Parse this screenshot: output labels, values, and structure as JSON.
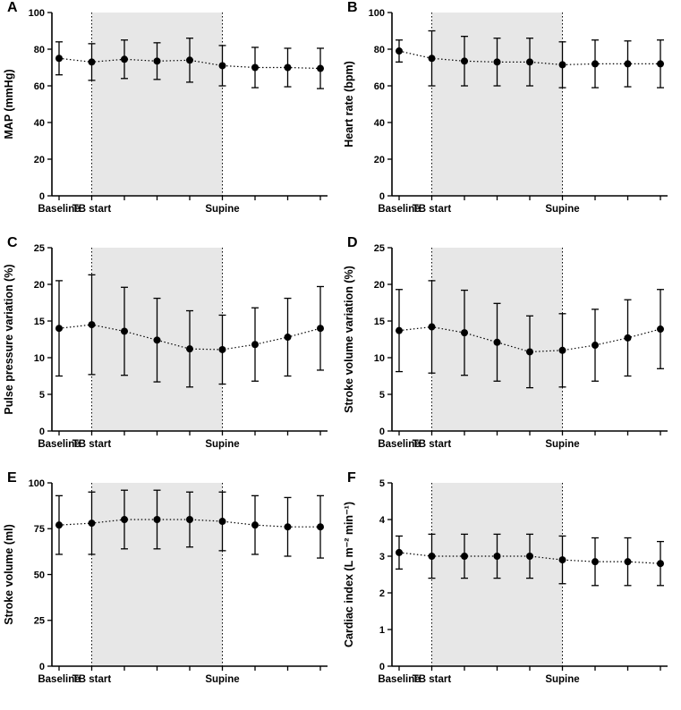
{
  "figure": {
    "background": "#ffffff",
    "axis_color": "#000000",
    "point_color": "#000000",
    "shade_color": "#e7e7e7"
  },
  "chart_data": [
    {
      "type": "line",
      "panel": "A",
      "ylabel": "MAP (mmHg)",
      "ylim": [
        0,
        100
      ],
      "yticks": [
        0,
        20,
        40,
        60,
        80,
        100
      ],
      "n_points": 9,
      "x_labels": [
        {
          "index": 0,
          "label": "Baseline"
        },
        {
          "index": 1,
          "label": "TB start"
        },
        {
          "index": 5,
          "label": "Supine"
        }
      ],
      "shaded_span": [
        1,
        5
      ],
      "means": [
        75,
        73,
        74.5,
        73.5,
        74,
        71,
        70,
        70,
        69.5
      ],
      "errors": [
        9,
        10,
        10.5,
        10,
        12,
        11,
        11,
        10.5,
        11
      ],
      "grid": false,
      "legend": "none"
    },
    {
      "type": "line",
      "panel": "B",
      "ylabel": "Heart rate (bpm)",
      "ylim": [
        0,
        100
      ],
      "yticks": [
        0,
        20,
        40,
        60,
        80,
        100
      ],
      "n_points": 9,
      "x_labels": [
        {
          "index": 0,
          "label": "Baseline"
        },
        {
          "index": 1,
          "label": "TB start"
        },
        {
          "index": 5,
          "label": "Supine"
        }
      ],
      "shaded_span": [
        1,
        5
      ],
      "means": [
        79,
        75,
        73.5,
        73,
        73,
        71.5,
        72,
        72,
        72
      ],
      "errors": [
        6,
        15,
        13.5,
        13,
        13,
        12.5,
        13,
        12.5,
        13
      ],
      "grid": false,
      "legend": "none"
    },
    {
      "type": "line",
      "panel": "C",
      "ylabel": "Pulse pressure variation (%)",
      "ylim": [
        0,
        25
      ],
      "yticks": [
        0,
        5,
        10,
        15,
        20,
        25
      ],
      "n_points": 9,
      "x_labels": [
        {
          "index": 0,
          "label": "Baseline"
        },
        {
          "index": 1,
          "label": "TB start"
        },
        {
          "index": 5,
          "label": "Supine"
        }
      ],
      "shaded_span": [
        1,
        5
      ],
      "means": [
        14,
        14.5,
        13.6,
        12.4,
        11.2,
        11.1,
        11.8,
        12.8,
        14
      ],
      "errors": [
        6.5,
        6.8,
        6.0,
        5.7,
        5.2,
        4.7,
        5.0,
        5.3,
        5.7
      ],
      "grid": false,
      "legend": "none"
    },
    {
      "type": "line",
      "panel": "D",
      "ylabel": "Stroke volume variation (%)",
      "ylim": [
        0,
        25
      ],
      "yticks": [
        0,
        5,
        10,
        15,
        20,
        25
      ],
      "n_points": 9,
      "x_labels": [
        {
          "index": 0,
          "label": "Baseline"
        },
        {
          "index": 1,
          "label": "TB start"
        },
        {
          "index": 5,
          "label": "Supine"
        }
      ],
      "shaded_span": [
        1,
        5
      ],
      "means": [
        13.7,
        14.2,
        13.4,
        12.1,
        10.8,
        11.0,
        11.7,
        12.7,
        13.9
      ],
      "errors": [
        5.6,
        6.3,
        5.8,
        5.3,
        4.9,
        5.0,
        4.9,
        5.2,
        5.4
      ],
      "grid": false,
      "legend": "none"
    },
    {
      "type": "line",
      "panel": "E",
      "ylabel": "Stroke volume (ml)",
      "ylim": [
        0,
        100
      ],
      "yticks": [
        0,
        25,
        50,
        75,
        100
      ],
      "n_points": 9,
      "x_labels": [
        {
          "index": 0,
          "label": "Baseline"
        },
        {
          "index": 1,
          "label": "TB start"
        },
        {
          "index": 5,
          "label": "Supine"
        }
      ],
      "shaded_span": [
        1,
        5
      ],
      "means": [
        77,
        78,
        80,
        80,
        80,
        79,
        77,
        76,
        76
      ],
      "errors": [
        16,
        17,
        16,
        16,
        15,
        16,
        16,
        16,
        17
      ],
      "grid": false,
      "legend": "none"
    },
    {
      "type": "line",
      "panel": "F",
      "ylabel": "Cardiac index (L m⁻² min⁻¹)",
      "ylim": [
        0,
        5
      ],
      "yticks": [
        0,
        1,
        2,
        3,
        4,
        5
      ],
      "n_points": 9,
      "x_labels": [
        {
          "index": 0,
          "label": "Baseline"
        },
        {
          "index": 1,
          "label": "TB start"
        },
        {
          "index": 5,
          "label": "Supine"
        }
      ],
      "shaded_span": [
        1,
        5
      ],
      "means": [
        3.1,
        3.0,
        3.0,
        3.0,
        3.0,
        2.9,
        2.85,
        2.85,
        2.8
      ],
      "errors": [
        0.45,
        0.6,
        0.6,
        0.6,
        0.6,
        0.65,
        0.65,
        0.65,
        0.6
      ],
      "grid": false,
      "legend": "none"
    }
  ]
}
